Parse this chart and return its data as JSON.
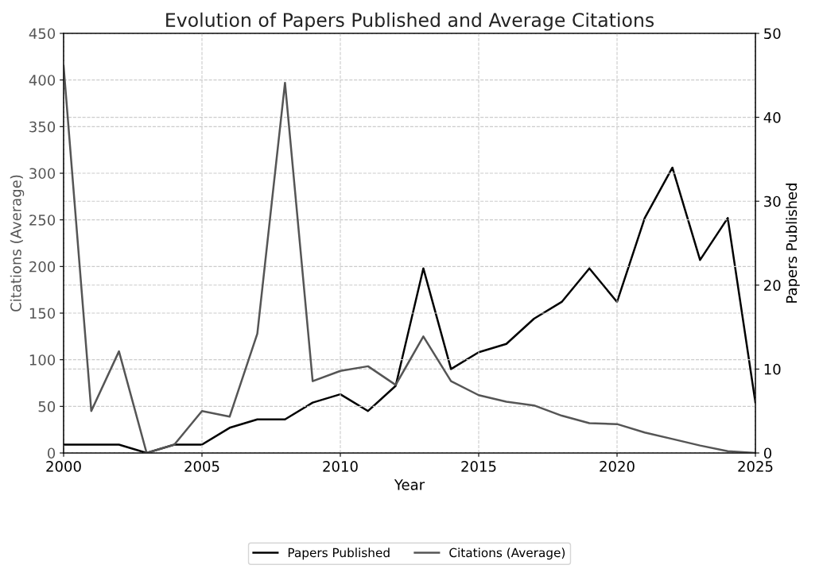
{
  "chart_data": {
    "type": "line",
    "title": "Evolution of Papers Published and Average Citations",
    "xlabel": "Year",
    "ylabel": "Citations (Average)",
    "y2label": "Papers Published",
    "x": [
      2000,
      2001,
      2002,
      2003,
      2004,
      2005,
      2006,
      2007,
      2008,
      2009,
      2010,
      2011,
      2012,
      2013,
      2014,
      2015,
      2016,
      2017,
      2018,
      2019,
      2020,
      2021,
      2022,
      2023,
      2024,
      2025
    ],
    "series": [
      {
        "name": "Papers Published",
        "color": "#000000",
        "axis": "y2",
        "values": [
          1,
          1,
          1,
          0,
          1,
          1,
          3,
          4,
          4,
          6,
          7,
          5,
          8,
          22,
          10,
          12,
          13,
          16,
          18,
          22,
          18,
          28,
          34,
          23,
          28,
          6
        ]
      },
      {
        "name": "Citations (Average)",
        "color": "#555555",
        "values": [
          415,
          45,
          109,
          0,
          9,
          45,
          39,
          128,
          397,
          77,
          88,
          93,
          73,
          125,
          77,
          62,
          55,
          51,
          40,
          32,
          31,
          22,
          15,
          8,
          2,
          0
        ]
      }
    ],
    "xlim": [
      2000,
      2025
    ],
    "xticks": [
      2000,
      2005,
      2010,
      2015,
      2020,
      2025
    ],
    "ylim": [
      0,
      450
    ],
    "yticks": [
      0,
      50,
      100,
      150,
      200,
      250,
      300,
      350,
      400,
      450
    ],
    "y2lim": [
      0,
      50
    ],
    "y2ticks": [
      0,
      10,
      20,
      30,
      40,
      50
    ],
    "grid": true,
    "legend": "bottom",
    "line_style": "solid"
  }
}
